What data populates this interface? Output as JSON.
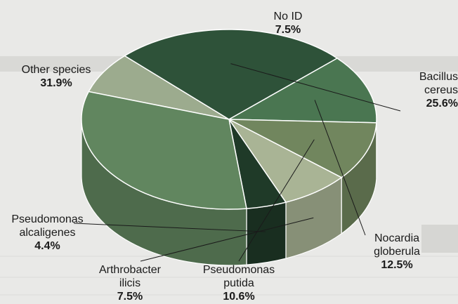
{
  "chart_data": {
    "type": "pie",
    "style": "3d-exploded-view",
    "title": "",
    "slices": [
      {
        "label": "No ID",
        "label_lines": [
          "No ID"
        ],
        "value_text": "7.5%",
        "value": 7.5,
        "color": "#9cab8e"
      },
      {
        "label": "Bacillus cereus",
        "label_lines": [
          "Bacillus",
          "cereus"
        ],
        "value_text": "25.6%",
        "value": 25.6,
        "color": "#2e5239"
      },
      {
        "label": "Nocardia globerula",
        "label_lines": [
          "Nocardia",
          "globerula"
        ],
        "value_text": "12.5%",
        "value": 12.5,
        "color": "#4a7651"
      },
      {
        "label": "Pseudomonas putida",
        "label_lines": [
          "Pseudomonas",
          "putida"
        ],
        "value_text": "10.6%",
        "value": 10.6,
        "color": "#71865e"
      },
      {
        "label": "Arthrobacter ilicis",
        "label_lines": [
          "Arthrobacter",
          "ilicis"
        ],
        "value_text": "7.5%",
        "value": 7.5,
        "color": "#a9b495"
      },
      {
        "label": "Pseudomonas alcaligenes",
        "label_lines": [
          "Pseudomonas",
          "alcaligenes"
        ],
        "value_text": "4.4%",
        "value": 4.4,
        "color": "#1f3a28"
      },
      {
        "label": "Other species",
        "label_lines": [
          "Other species"
        ],
        "value_text": "31.9%",
        "value": 31.9,
        "color": "#61865f"
      }
    ]
  }
}
